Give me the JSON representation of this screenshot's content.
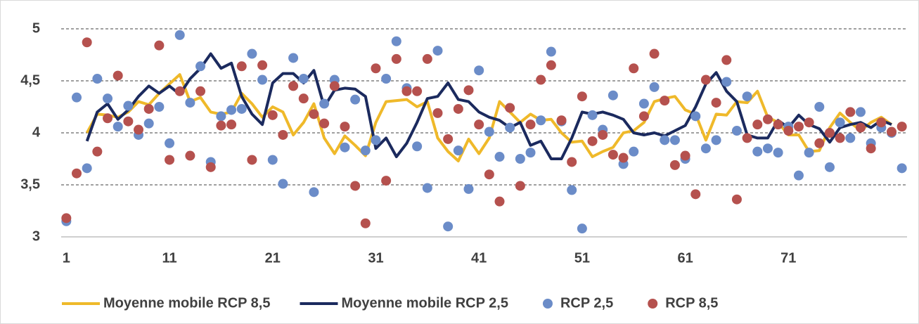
{
  "chart_data": {
    "type": "line",
    "x": [
      1,
      2,
      3,
      4,
      5,
      6,
      7,
      8,
      9,
      10,
      11,
      12,
      13,
      14,
      15,
      16,
      17,
      18,
      19,
      20,
      21,
      22,
      23,
      24,
      25,
      26,
      27,
      28,
      29,
      30,
      31,
      32,
      33,
      34,
      35,
      36,
      37,
      38,
      39,
      40,
      41,
      42,
      43,
      44,
      45,
      46,
      47,
      48,
      49,
      50,
      51,
      52,
      53,
      54,
      55,
      56,
      57,
      58,
      59,
      60,
      61,
      62,
      63,
      64,
      65,
      66,
      67,
      68,
      69,
      70,
      71,
      72,
      73,
      74,
      75,
      76,
      77,
      78,
      79,
      80,
      81,
      82
    ],
    "xlim": [
      0.5,
      82.5
    ],
    "xticks": [
      1,
      11,
      21,
      31,
      41,
      51,
      61,
      71
    ],
    "ylim": [
      3,
      5
    ],
    "yticks": [
      3,
      {
        "value": 3.5,
        "label": "3,5"
      },
      4,
      {
        "value": 4.5,
        "label": "4,5"
      },
      5
    ],
    "grid": true,
    "legend": "bottom",
    "series": [
      {
        "name": "Moyenne mobile RCP 8,5",
        "type": "line",
        "color": "#efb92a",
        "values": [
          null,
          null,
          4.0,
          4.18,
          4.17,
          4.15,
          4.2,
          4.3,
          4.27,
          4.38,
          4.47,
          4.56,
          4.3,
          4.34,
          4.2,
          4.18,
          4.2,
          4.38,
          4.28,
          4.15,
          4.25,
          4.2,
          3.98,
          4.1,
          4.28,
          3.95,
          3.8,
          3.97,
          3.88,
          3.78,
          4.1,
          4.3,
          4.31,
          4.32,
          4.25,
          4.3,
          3.95,
          3.82,
          3.73,
          3.94,
          3.8,
          3.95,
          4.3,
          4.2,
          4.1,
          4.18,
          4.12,
          4.13,
          4.0,
          3.91,
          3.92,
          3.77,
          3.82,
          3.86,
          4.0,
          4.02,
          4.1,
          4.3,
          4.33,
          4.35,
          4.22,
          4.18,
          3.93,
          4.18,
          4.17,
          4.3,
          4.29,
          4.4,
          4.15,
          4.1,
          3.98,
          3.98,
          3.82,
          3.83,
          4.05,
          4.19,
          4.1,
          4.02,
          4.1,
          4.15,
          4.08,
          null
        ]
      },
      {
        "name": "Moyenne mobile RCP 2,5",
        "type": "line",
        "color": "#1b2a5e",
        "values": [
          null,
          null,
          3.92,
          4.2,
          4.28,
          4.13,
          4.22,
          4.35,
          4.45,
          4.38,
          4.45,
          4.37,
          4.52,
          4.62,
          4.76,
          4.62,
          4.67,
          4.35,
          4.18,
          4.08,
          4.48,
          4.57,
          4.57,
          4.48,
          4.6,
          4.25,
          4.41,
          4.43,
          4.42,
          4.35,
          3.85,
          3.95,
          3.77,
          3.9,
          4.1,
          4.33,
          4.35,
          4.48,
          4.32,
          4.3,
          4.2,
          4.15,
          4.12,
          4.05,
          4.1,
          3.88,
          3.92,
          3.75,
          3.75,
          3.95,
          4.2,
          4.18,
          4.2,
          4.17,
          4.13,
          4.0,
          3.98,
          4.0,
          3.97,
          4.02,
          4.07,
          4.25,
          4.47,
          4.58,
          4.4,
          4.3,
          3.98,
          3.95,
          3.95,
          4.12,
          4.05,
          4.17,
          4.08,
          4.04,
          3.91,
          4.05,
          4.08,
          4.1,
          4.05,
          4.12,
          4.08,
          null
        ]
      },
      {
        "name": "RCP 2,5",
        "type": "scatter",
        "color": "#6b8cc8",
        "values": [
          3.15,
          4.34,
          3.66,
          4.52,
          4.33,
          4.06,
          4.26,
          3.98,
          4.09,
          4.25,
          3.9,
          4.94,
          4.29,
          4.64,
          3.72,
          4.16,
          4.22,
          4.23,
          4.76,
          4.51,
          3.74,
          3.51,
          4.72,
          4.52,
          3.43,
          4.28,
          4.51,
          3.86,
          4.32,
          3.83,
          3.93,
          4.52,
          4.88,
          4.43,
          3.87,
          3.47,
          4.79,
          3.1,
          3.83,
          3.46,
          4.6,
          4.01,
          3.77,
          4.05,
          3.75,
          3.81,
          4.12,
          4.78,
          4.11,
          3.45,
          3.08,
          4.17,
          4.03,
          4.36,
          3.7,
          3.82,
          4.28,
          4.44,
          3.93,
          3.93,
          3.75,
          4.16,
          3.85,
          3.93,
          4.49,
          4.02,
          4.35,
          3.82,
          3.85,
          3.81,
          4.06,
          3.59,
          3.81,
          4.25,
          3.67,
          4.1,
          3.95,
          4.2,
          3.9,
          4.05,
          4.0,
          3.66
        ]
      },
      {
        "name": "RCP 8,5",
        "type": "scatter",
        "color": "#b5514e",
        "values": [
          3.18,
          3.61,
          4.87,
          3.82,
          4.14,
          4.55,
          4.11,
          4.03,
          4.23,
          4.84,
          3.74,
          4.4,
          3.78,
          4.4,
          3.67,
          4.07,
          4.08,
          4.64,
          3.74,
          4.65,
          4.17,
          3.98,
          4.45,
          4.33,
          4.18,
          4.09,
          4.45,
          4.06,
          3.49,
          3.13,
          4.62,
          3.54,
          4.71,
          4.4,
          4.4,
          4.71,
          4.19,
          3.94,
          4.23,
          4.41,
          4.08,
          3.6,
          3.34,
          4.24,
          3.49,
          4.08,
          4.51,
          4.65,
          4.12,
          3.72,
          4.35,
          3.92,
          3.98,
          3.79,
          3.76,
          4.62,
          4.16,
          4.76,
          4.31,
          3.69,
          3.78,
          3.41,
          4.51,
          4.29,
          4.7,
          3.36,
          3.95,
          4.08,
          4.13,
          4.08,
          4.02,
          4.06,
          4.1,
          3.9,
          4.0,
          3.95,
          4.2,
          4.05,
          3.85,
          4.1,
          4.01,
          4.06
        ]
      }
    ]
  }
}
